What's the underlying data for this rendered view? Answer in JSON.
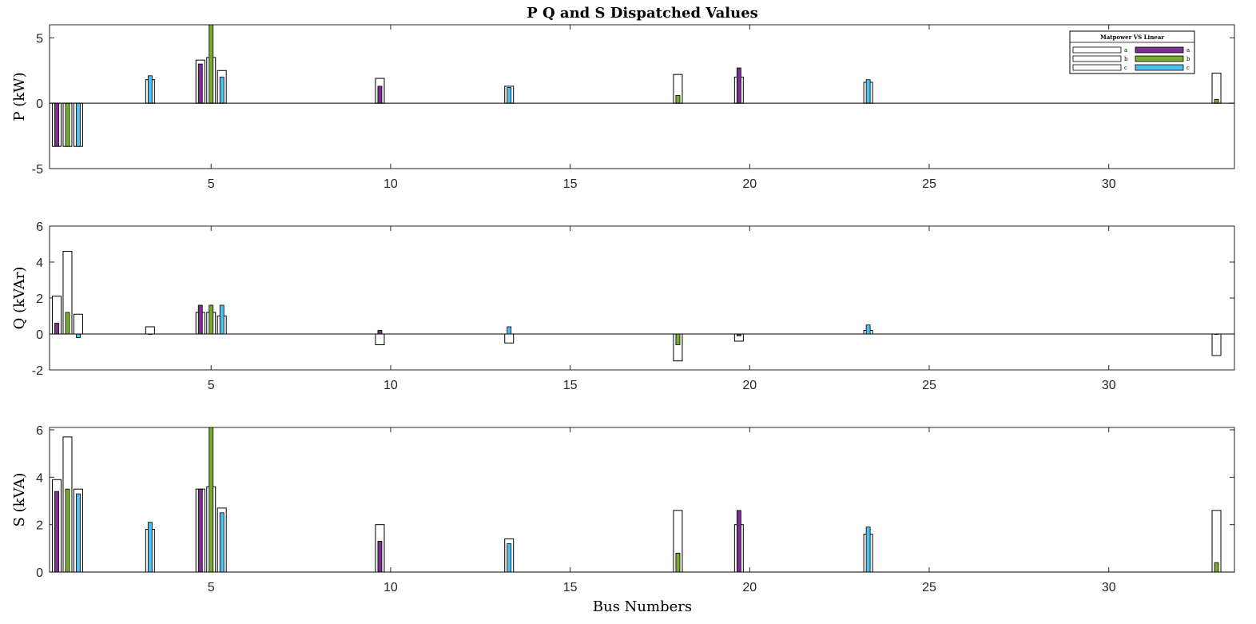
{
  "chart_data": {
    "title": "P Q and S Dispatched Values",
    "xlabel": "Bus Numbers",
    "xlim": [
      0.5,
      33.5
    ],
    "xticks": [
      5,
      10,
      15,
      20,
      25,
      30
    ],
    "phases": [
      "a",
      "b",
      "c"
    ],
    "colors": {
      "matpower": "#ffffff",
      "a": "#7b2f8e",
      "b": "#77ac30",
      "c": "#4dbeee",
      "edge": "#000000"
    },
    "legend": {
      "title": "Matpower VS Linear",
      "entries": [
        {
          "series": "Matpower",
          "phase": "a",
          "label": "a"
        },
        {
          "series": "Linear",
          "phase": "a",
          "label": "a"
        },
        {
          "series": "Matpower",
          "phase": "b",
          "label": "b"
        },
        {
          "series": "Linear",
          "phase": "b",
          "label": "b"
        },
        {
          "series": "Matpower",
          "phase": "c",
          "label": "c"
        },
        {
          "series": "Linear",
          "phase": "c",
          "label": "c"
        }
      ],
      "location": "top-right"
    },
    "subplots": [
      {
        "type": "bar",
        "ylabel": "P (kW)",
        "ylim": [
          -5,
          6
        ],
        "yticks": [
          -5,
          0,
          5
        ],
        "bars": [
          {
            "bus": 1,
            "phase": "a",
            "matpower": -3.3,
            "linear": -3.3
          },
          {
            "bus": 1,
            "phase": "b",
            "matpower": -3.3,
            "linear": -3.3
          },
          {
            "bus": 1,
            "phase": "c",
            "matpower": -3.3,
            "linear": -3.3
          },
          {
            "bus": 3,
            "phase": "c",
            "matpower": 1.8,
            "linear": 2.1
          },
          {
            "bus": 5,
            "phase": "a",
            "matpower": 3.3,
            "linear": 3.0
          },
          {
            "bus": 5,
            "phase": "b",
            "matpower": 3.5,
            "linear": 6.0
          },
          {
            "bus": 5,
            "phase": "c",
            "matpower": 2.5,
            "linear": 2.0
          },
          {
            "bus": 10,
            "phase": "a",
            "matpower": 1.9,
            "linear": 1.3
          },
          {
            "bus": 13,
            "phase": "c",
            "matpower": 1.3,
            "linear": 1.2
          },
          {
            "bus": 18,
            "phase": "b",
            "matpower": 2.2,
            "linear": 0.6
          },
          {
            "bus": 20,
            "phase": "a",
            "matpower": 2.0,
            "linear": 2.7
          },
          {
            "bus": 23,
            "phase": "c",
            "matpower": 1.6,
            "linear": 1.8
          },
          {
            "bus": 33,
            "phase": "b",
            "matpower": 2.3,
            "linear": 0.3
          }
        ]
      },
      {
        "type": "bar",
        "ylabel": "Q (kVAr)",
        "ylim": [
          -2,
          6
        ],
        "yticks": [
          -2,
          0,
          2,
          4,
          6
        ],
        "bars": [
          {
            "bus": 1,
            "phase": "a",
            "matpower": 2.1,
            "linear": 0.6
          },
          {
            "bus": 1,
            "phase": "b",
            "matpower": 4.6,
            "linear": 1.2
          },
          {
            "bus": 1,
            "phase": "c",
            "matpower": 1.1,
            "linear": -0.2
          },
          {
            "bus": 3,
            "phase": "c",
            "matpower": 0.4,
            "linear": 0.0
          },
          {
            "bus": 5,
            "phase": "a",
            "matpower": 1.2,
            "linear": 1.6
          },
          {
            "bus": 5,
            "phase": "b",
            "matpower": 1.2,
            "linear": 1.6
          },
          {
            "bus": 5,
            "phase": "c",
            "matpower": 1.0,
            "linear": 1.6
          },
          {
            "bus": 10,
            "phase": "a",
            "matpower": -0.6,
            "linear": 0.2
          },
          {
            "bus": 13,
            "phase": "c",
            "matpower": -0.5,
            "linear": 0.4
          },
          {
            "bus": 18,
            "phase": "b",
            "matpower": -1.5,
            "linear": -0.6
          },
          {
            "bus": 20,
            "phase": "a",
            "matpower": -0.4,
            "linear": -0.1
          },
          {
            "bus": 23,
            "phase": "c",
            "matpower": 0.2,
            "linear": 0.5
          },
          {
            "bus": 33,
            "phase": "b",
            "matpower": -1.2,
            "linear": 0.0
          }
        ]
      },
      {
        "type": "bar",
        "ylabel": "S (kVA)",
        "ylim": [
          0,
          6.1
        ],
        "yticks": [
          0,
          2,
          4,
          6
        ],
        "bars": [
          {
            "bus": 1,
            "phase": "a",
            "matpower": 3.9,
            "linear": 3.4
          },
          {
            "bus": 1,
            "phase": "b",
            "matpower": 5.7,
            "linear": 3.5
          },
          {
            "bus": 1,
            "phase": "c",
            "matpower": 3.5,
            "linear": 3.3
          },
          {
            "bus": 3,
            "phase": "c",
            "matpower": 1.8,
            "linear": 2.1
          },
          {
            "bus": 5,
            "phase": "a",
            "matpower": 3.5,
            "linear": 3.5
          },
          {
            "bus": 5,
            "phase": "b",
            "matpower": 3.6,
            "linear": 6.1
          },
          {
            "bus": 5,
            "phase": "c",
            "matpower": 2.7,
            "linear": 2.5
          },
          {
            "bus": 10,
            "phase": "a",
            "matpower": 2.0,
            "linear": 1.3
          },
          {
            "bus": 13,
            "phase": "c",
            "matpower": 1.4,
            "linear": 1.2
          },
          {
            "bus": 18,
            "phase": "b",
            "matpower": 2.6,
            "linear": 0.8
          },
          {
            "bus": 20,
            "phase": "a",
            "matpower": 2.0,
            "linear": 2.6
          },
          {
            "bus": 23,
            "phase": "c",
            "matpower": 1.6,
            "linear": 1.9
          },
          {
            "bus": 33,
            "phase": "b",
            "matpower": 2.6,
            "linear": 0.4
          }
        ]
      }
    ]
  }
}
